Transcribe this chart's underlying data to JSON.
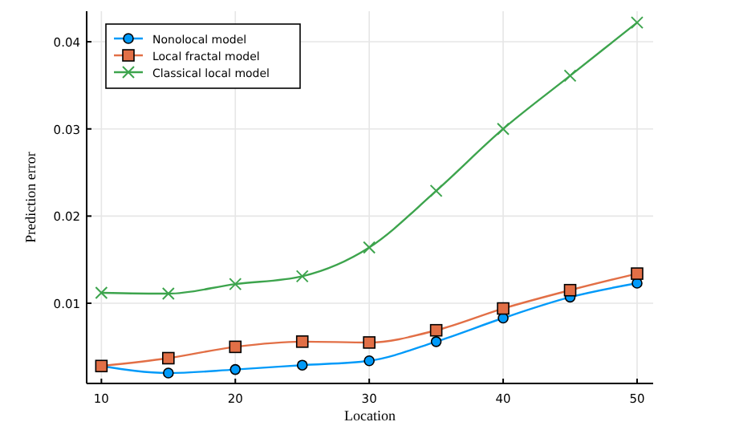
{
  "chart_data": {
    "type": "line",
    "xlabel": "Location",
    "ylabel": "Prediction error",
    "x": [
      10,
      15,
      20,
      25,
      30,
      35,
      40,
      45,
      50
    ],
    "xlim": [
      8.9,
      51.2
    ],
    "xticks": [
      10,
      20,
      30,
      40,
      50
    ],
    "ylim": [
      0.0008,
      0.0435
    ],
    "yticks": [
      0.01,
      0.02,
      0.03,
      0.04
    ],
    "grid": true,
    "legend": "top left",
    "series": [
      {
        "name": "Nonolocal model",
        "color": "#009af9",
        "marker": "circle",
        "values": [
          0.0028,
          0.002,
          0.0024,
          0.0029,
          0.0034,
          0.0056,
          0.0083,
          0.0107,
          0.0123
        ]
      },
      {
        "name": "Local fractal model",
        "color": "#e26f46",
        "marker": "square",
        "values": [
          0.0028,
          0.0037,
          0.005,
          0.0056,
          0.0055,
          0.0069,
          0.0094,
          0.0115,
          0.0134
        ]
      },
      {
        "name": "Classical local model",
        "color": "#3da44d",
        "marker": "cross",
        "values": [
          0.0112,
          0.0111,
          0.0122,
          0.0131,
          0.0164,
          0.0229,
          0.03,
          0.0361,
          0.0422
        ]
      }
    ]
  }
}
